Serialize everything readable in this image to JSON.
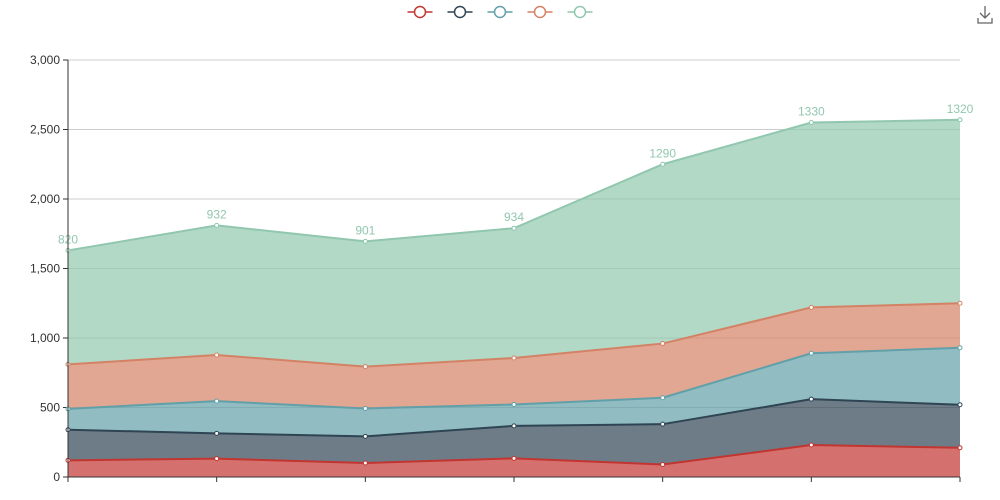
{
  "chart_data": {
    "type": "area",
    "stacked": true,
    "categories": [
      "",
      "",
      "",
      "",
      "",
      "",
      ""
    ],
    "series": [
      {
        "color": "#c23531",
        "values": [
          120,
          132,
          101,
          134,
          90,
          230,
          210
        ]
      },
      {
        "color": "#2f4554",
        "values": [
          220,
          182,
          191,
          234,
          290,
          330,
          310
        ]
      },
      {
        "color": "#61a0a8",
        "values": [
          150,
          232,
          201,
          154,
          190,
          330,
          410
        ]
      },
      {
        "color": "#d48265",
        "values": [
          320,
          332,
          301,
          334,
          390,
          330,
          320
        ]
      },
      {
        "color": "#91c7ae",
        "values": [
          820,
          932,
          901,
          934,
          1290,
          1330,
          1320
        ],
        "show_labels": true
      }
    ],
    "ylim": [
      0,
      3000
    ],
    "y_ticks": [
      "0",
      "500",
      "1,000",
      "1,500",
      "2,000",
      "2,500",
      "3,000"
    ],
    "grid": true,
    "legend_position": "top-center"
  },
  "toolbox": {
    "icon": "download-icon"
  }
}
